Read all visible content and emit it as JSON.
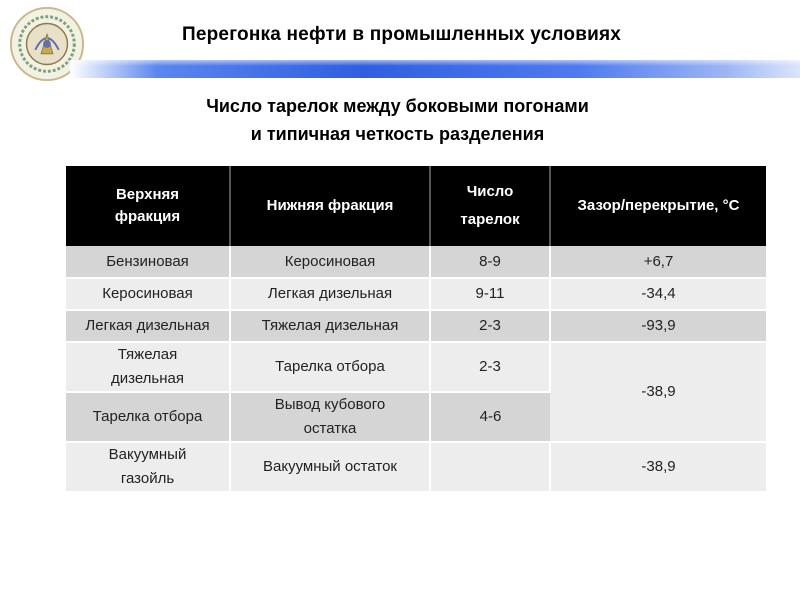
{
  "header": {
    "title": "Перегонка нефти в промышленных условиях",
    "logo_icon": "university-seal-icon"
  },
  "subtitle": {
    "line1": "Число тарелок между боковыми погонами",
    "line2": "и типичная четкость разделения"
  },
  "table": {
    "columns": [
      {
        "line1": "Верхняя",
        "line2": "фракция"
      },
      {
        "line1": "Нижняя фракция",
        "line2": ""
      },
      {
        "line1": "Число",
        "line2": "тарелок"
      },
      {
        "line1": "Зазор/перекрытие, °С",
        "line2": ""
      }
    ],
    "rows": [
      {
        "upper": "Бензиновая",
        "lower": "Керосиновая",
        "trays": "8-9",
        "gap": "+6,7"
      },
      {
        "upper": "Керосиновая",
        "lower": "Легкая дизельная",
        "trays": "9-11",
        "gap": "-34,4"
      },
      {
        "upper": "Легкая дизельная",
        "lower": "Тяжелая дизельная",
        "trays": "2-3",
        "gap": "-93,9"
      },
      {
        "upper_line1": "Тяжелая",
        "upper_line2": "дизельная",
        "lower": "Тарелка отбора",
        "trays": "2-3",
        "gap": "-38,9"
      },
      {
        "upper": "Тарелка отбора",
        "lower_line1": "Вывод кубового",
        "lower_line2": "остатка",
        "trays": "4-6"
      },
      {
        "upper_line1": "Вакуумный",
        "upper_line2": "газойль",
        "lower": "Вакуумный остаток",
        "trays": "",
        "gap": "-38,9"
      }
    ]
  },
  "colors": {
    "header_bar": "#2f5fe0",
    "table_header_bg": "#000000",
    "row_dark": "#d5d5d5",
    "row_light": "#ededed"
  }
}
